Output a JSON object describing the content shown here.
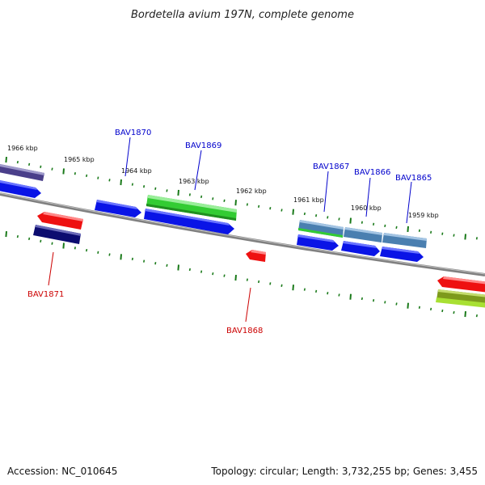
{
  "title": "Bordetella avium 197N, complete genome",
  "footer": {
    "accession": "Accession: NC_010645",
    "summary": "Topology: circular; Length: 3,732,255 bp; Genes: 3,455"
  },
  "colors": {
    "forward_label": "#0000cc",
    "reverse_label": "#cc0000",
    "tick": "#1a7a1a",
    "backbone": "#808080",
    "blue": "#0a14e6",
    "red": "#ee1111",
    "navy": "#0c0c70",
    "green": "#33cc33",
    "steel": "#4a7fb0",
    "purple": "#4a3f8a",
    "olive": "#7d9a1c",
    "lime": "#a8e033"
  },
  "scale_labels": [
    "1966 kbp",
    "1965 kbp",
    "1964 kbp",
    "1963 kbp",
    "1962 kbp",
    "1961 kbp",
    "1960 kbp",
    "1959 kbp"
  ],
  "gene_labels": [
    {
      "text": "BAV1870",
      "strand": "forward"
    },
    {
      "text": "BAV1869",
      "strand": "forward"
    },
    {
      "text": "BAV1867",
      "strand": "forward"
    },
    {
      "text": "BAV1866",
      "strand": "forward"
    },
    {
      "text": "BAV1865",
      "strand": "forward"
    },
    {
      "text": "BAV1871",
      "strand": "reverse"
    },
    {
      "text": "BAV1868",
      "strand": "reverse"
    }
  ]
}
